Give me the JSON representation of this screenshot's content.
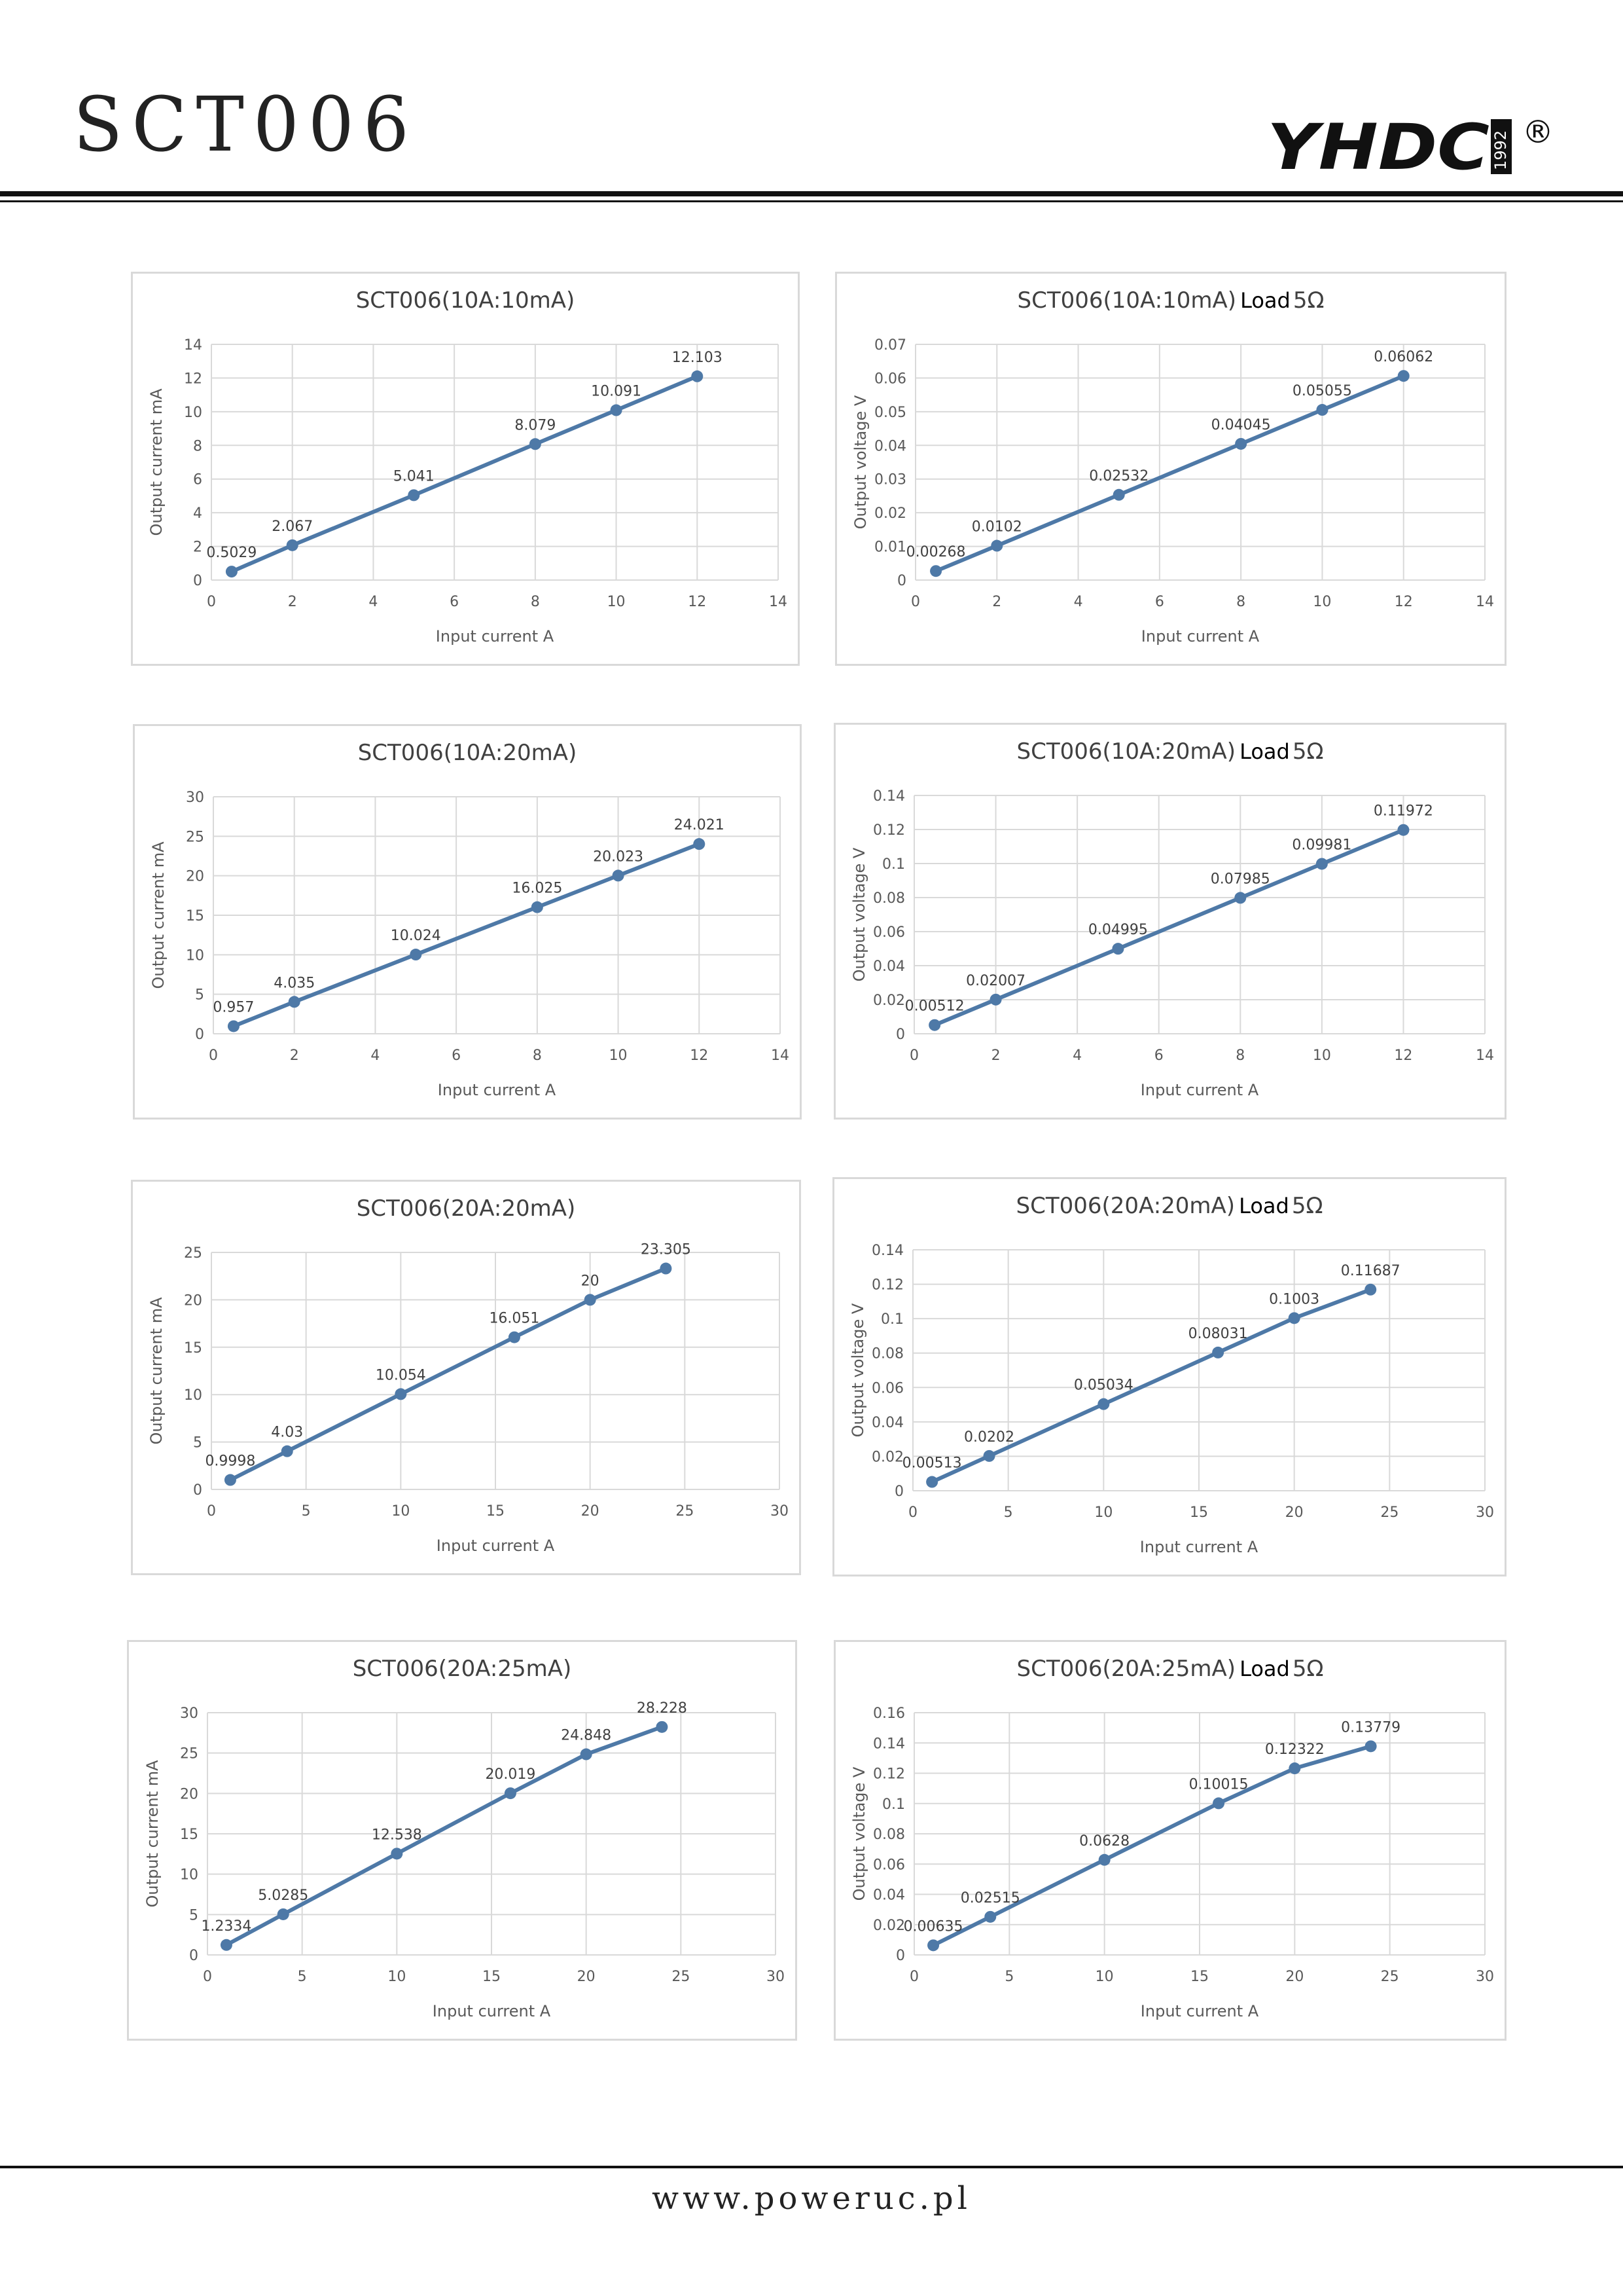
{
  "header": {
    "title": "SCT006",
    "brand": "YHDC",
    "brand_year": "1992",
    "registered_mark": "®"
  },
  "footer": {
    "url": "www.poweruc.pl"
  },
  "colors": {
    "series": "#4e79a7",
    "grid": "#d9d9d9",
    "text": "#595959",
    "title": "#404040"
  },
  "chart_data": [
    {
      "type": "line",
      "title": "SCT006(10A:10mA)",
      "xlabel": "Input current A",
      "ylabel": "Output current mA",
      "x": [
        0.5,
        2,
        5,
        8,
        10,
        12
      ],
      "y": [
        0.5029,
        2.067,
        5.041,
        8.079,
        10.091,
        12.103
      ],
      "labels": [
        "0.5029",
        "2.067",
        "5.041",
        "8.079",
        "10.091",
        "12.103"
      ],
      "xlim": [
        0,
        14
      ],
      "xticks": [
        0,
        2,
        4,
        6,
        8,
        10,
        12,
        14
      ],
      "ylim": [
        0,
        14
      ],
      "yticks": [
        0,
        2,
        4,
        6,
        8,
        10,
        12,
        14
      ],
      "ytick_labels": [
        "0",
        "2",
        "4",
        "6",
        "8",
        "10",
        "12",
        "14"
      ],
      "grid": true
    },
    {
      "type": "line",
      "title": "SCT006(10A:10mA)",
      "title_suffix": "Load",
      "title_load": "5Ω",
      "xlabel": "Input current A",
      "ylabel": "Output voltage V",
      "x": [
        0.5,
        2,
        5,
        8,
        10,
        12
      ],
      "y": [
        0.00268,
        0.0102,
        0.02532,
        0.04045,
        0.05055,
        0.06062
      ],
      "labels": [
        "0.00268",
        "0.0102",
        "0.02532",
        "0.04045",
        "0.05055",
        "0.06062"
      ],
      "xlim": [
        0,
        14
      ],
      "xticks": [
        0,
        2,
        4,
        6,
        8,
        10,
        12,
        14
      ],
      "ylim": [
        0,
        0.07
      ],
      "yticks": [
        0,
        0.01,
        0.02,
        0.03,
        0.04,
        0.05,
        0.06,
        0.07
      ],
      "ytick_labels": [
        "0",
        "0.01",
        "0.02",
        "0.03",
        "0.04",
        "0.05",
        "0.06",
        "0.07"
      ],
      "grid": true
    },
    {
      "type": "line",
      "title": "SCT006(10A:20mA)",
      "xlabel": "Input current A",
      "ylabel": "Output current mA",
      "x": [
        0.5,
        2,
        5,
        8,
        10,
        12
      ],
      "y": [
        0.957,
        4.035,
        10.024,
        16.025,
        20.023,
        24.021
      ],
      "labels": [
        "0.957",
        "4.035",
        "10.024",
        "16.025",
        "20.023",
        "24.021"
      ],
      "xlim": [
        0,
        14
      ],
      "xticks": [
        0,
        2,
        4,
        6,
        8,
        10,
        12,
        14
      ],
      "ylim": [
        0,
        30
      ],
      "yticks": [
        0,
        5,
        10,
        15,
        20,
        25,
        30
      ],
      "ytick_labels": [
        "0",
        "5",
        "10",
        "15",
        "20",
        "25",
        "30"
      ],
      "grid": true
    },
    {
      "type": "line",
      "title": "SCT006(10A:20mA)",
      "title_suffix": "Load",
      "title_load": "5Ω",
      "xlabel": "Input current A",
      "ylabel": "Output voltage V",
      "x": [
        0.5,
        2,
        5,
        8,
        10,
        12
      ],
      "y": [
        0.00512,
        0.02007,
        0.04995,
        0.07985,
        0.09981,
        0.11972
      ],
      "labels": [
        "0.00512",
        "0.02007",
        "0.04995",
        "0.07985",
        "0.09981",
        "0.11972"
      ],
      "xlim": [
        0,
        14
      ],
      "xticks": [
        0,
        2,
        4,
        6,
        8,
        10,
        12,
        14
      ],
      "ylim": [
        0,
        0.14
      ],
      "yticks": [
        0,
        0.02,
        0.04,
        0.06,
        0.08,
        0.1,
        0.12,
        0.14
      ],
      "ytick_labels": [
        "0",
        "0.02",
        "0.04",
        "0.06",
        "0.08",
        "0.1",
        "0.12",
        "0.14"
      ],
      "grid": true
    },
    {
      "type": "line",
      "title": "SCT006(20A:20mA)",
      "xlabel": "Input current A",
      "ylabel": "Output current mA",
      "x": [
        1,
        4,
        10,
        16,
        20,
        24
      ],
      "y": [
        0.9998,
        4.03,
        10.054,
        16.051,
        20,
        23.305
      ],
      "labels": [
        "0.9998",
        "4.03",
        "10.054",
        "16.051",
        "20",
        "23.305"
      ],
      "xlim": [
        0,
        30
      ],
      "xticks": [
        0,
        5,
        10,
        15,
        20,
        25,
        30
      ],
      "ylim": [
        0,
        25
      ],
      "yticks": [
        0,
        5,
        10,
        15,
        20,
        25
      ],
      "ytick_labels": [
        "0",
        "5",
        "10",
        "15",
        "20",
        "25"
      ],
      "grid": true
    },
    {
      "type": "line",
      "title": "SCT006(20A:20mA)",
      "title_suffix": "Load",
      "title_load": "5Ω",
      "xlabel": "Input current A",
      "ylabel": "Output voltage V",
      "x": [
        1,
        4,
        10,
        16,
        20,
        24
      ],
      "y": [
        0.00513,
        0.0202,
        0.05034,
        0.08031,
        0.1003,
        0.11687
      ],
      "labels": [
        "0.00513",
        "0.0202",
        "0.05034",
        "0.08031",
        "0.1003",
        "0.11687"
      ],
      "xlim": [
        0,
        30
      ],
      "xticks": [
        0,
        5,
        10,
        15,
        20,
        25,
        30
      ],
      "ylim": [
        0,
        0.14
      ],
      "yticks": [
        0,
        0.02,
        0.04,
        0.06,
        0.08,
        0.1,
        0.12,
        0.14
      ],
      "ytick_labels": [
        "0",
        "0.02",
        "0.04",
        "0.06",
        "0.08",
        "0.1",
        "0.12",
        "0.14"
      ],
      "grid": true
    },
    {
      "type": "line",
      "title": "SCT006(20A:25mA)",
      "xlabel": "Input current A",
      "ylabel": "Output current mA",
      "x": [
        1,
        4,
        10,
        16,
        20,
        24
      ],
      "y": [
        1.2334,
        5.0285,
        12.538,
        20.019,
        24.848,
        28.228
      ],
      "labels": [
        "1.2334",
        "5.0285",
        "12.538",
        "20.019",
        "24.848",
        "28.228"
      ],
      "xlim": [
        0,
        30
      ],
      "xticks": [
        0,
        5,
        10,
        15,
        20,
        25,
        30
      ],
      "ylim": [
        0,
        30
      ],
      "yticks": [
        0,
        5,
        10,
        15,
        20,
        25,
        30
      ],
      "ytick_labels": [
        "0",
        "5",
        "10",
        "15",
        "20",
        "25",
        "30"
      ],
      "grid": true
    },
    {
      "type": "line",
      "title": "SCT006(20A:25mA)",
      "title_suffix": "Load",
      "title_load": "5Ω",
      "xlabel": "Input current A",
      "ylabel": "Output voltage  V",
      "x": [
        1,
        4,
        10,
        16,
        20,
        24
      ],
      "y": [
        0.00635,
        0.02515,
        0.0628,
        0.10015,
        0.12322,
        0.13779
      ],
      "labels": [
        "0.00635",
        "0.02515",
        "0.0628",
        "0.10015",
        "0.12322",
        "0.13779"
      ],
      "xlim": [
        0,
        30
      ],
      "xticks": [
        0,
        5,
        10,
        15,
        20,
        25,
        30
      ],
      "ylim": [
        0,
        0.16
      ],
      "yticks": [
        0,
        0.02,
        0.04,
        0.06,
        0.08,
        0.1,
        0.12,
        0.14,
        0.16
      ],
      "ytick_labels": [
        "0",
        "0.02",
        "0.04",
        "0.06",
        "0.08",
        "0.1",
        "0.12",
        "0.14",
        "0.16"
      ],
      "grid": true
    }
  ]
}
